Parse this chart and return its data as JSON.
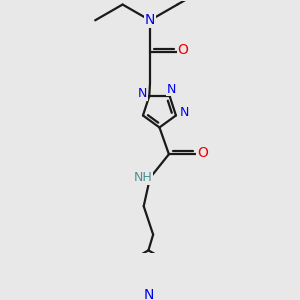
{
  "bg_color": "#e8e8e8",
  "bond_color": "#1a1a1a",
  "N_color": "#0000ee",
  "O_color": "#ee0000",
  "H_color": "#4a9090",
  "line_width": 1.6,
  "figsize": [
    3.0,
    3.0
  ],
  "dpi": 100,
  "xlim": [
    -2.5,
    2.5
  ],
  "ylim": [
    -5.2,
    2.8
  ]
}
